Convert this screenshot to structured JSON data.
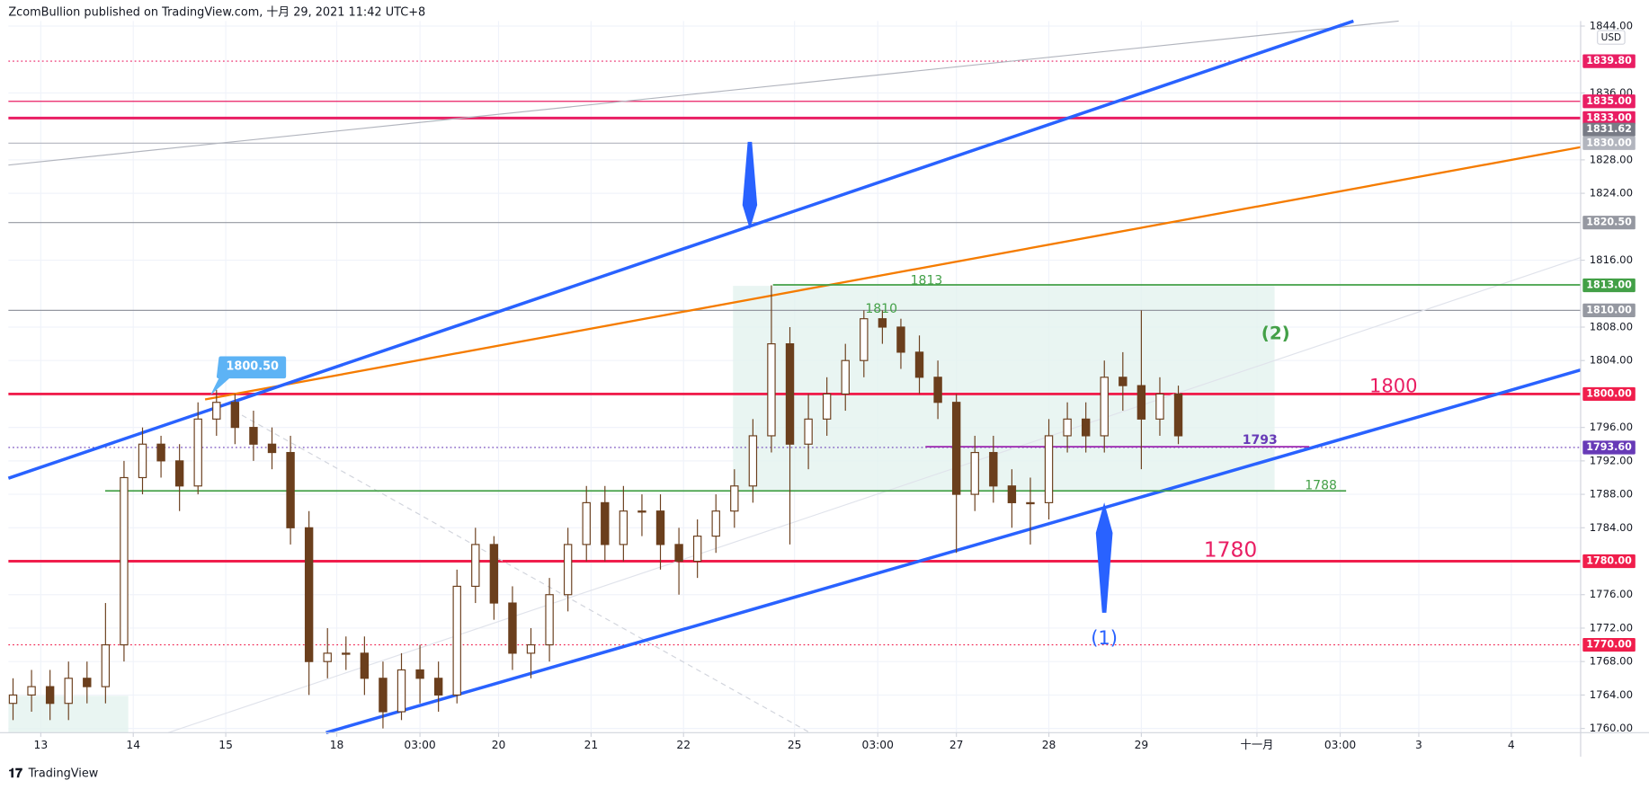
{
  "header": "ZcomBullion published on TradingView.com, 十月 29, 2021 11:42 UTC+8",
  "footer": "TradingView",
  "chart_data": {
    "type": "candlestick",
    "currency": "USD",
    "color": "#6b3f1d",
    "x": [
      1,
      5,
      9,
      13,
      17,
      21,
      25,
      29,
      33,
      37,
      41,
      45,
      49,
      53,
      57,
      61,
      65,
      69,
      73,
      77,
      81,
      85,
      89,
      93,
      97,
      101,
      105,
      109,
      113,
      117,
      121,
      125,
      129,
      133,
      137,
      141,
      145,
      149,
      153,
      157,
      161,
      165,
      169,
      173,
      177,
      181,
      185,
      189,
      193,
      197,
      201,
      205,
      209,
      213,
      217,
      221,
      225,
      229,
      233,
      237,
      241,
      245,
      249,
      253
    ],
    "open": [
      1763,
      1764,
      1765,
      1763,
      1766,
      1765,
      1770,
      1790,
      1794,
      1792,
      1789,
      1797,
      1799,
      1796,
      1794,
      1793,
      1784,
      1768,
      1769,
      1769,
      1766,
      1762,
      1767,
      1766,
      1764,
      1777,
      1782,
      1775,
      1769,
      1770,
      1776,
      1782,
      1787,
      1782,
      1786,
      1786,
      1782,
      1780,
      1783,
      1786,
      1789,
      1795,
      1806,
      1794,
      1797,
      1800,
      1804,
      1809,
      1808,
      1805,
      1802,
      1799,
      1788,
      1793,
      1789,
      1787,
      1787,
      1795,
      1797,
      1795,
      1802,
      1801,
      1797,
      1800
    ],
    "high": [
      1766,
      1767,
      1767,
      1768,
      1768,
      1775,
      1792,
      1796,
      1795,
      1794,
      1799,
      1800.5,
      1800,
      1798,
      1796,
      1795,
      1786,
      1772,
      1771,
      1771,
      1768,
      1769,
      1770,
      1768,
      1779,
      1784,
      1783,
      1777,
      1772,
      1778,
      1784,
      1789,
      1789,
      1789,
      1788,
      1788,
      1784,
      1785,
      1788,
      1791,
      1797,
      1813,
      1808,
      1800,
      1802,
      1806,
      1810,
      1810,
      1809,
      1807,
      1804,
      1800,
      1795,
      1795,
      1791,
      1790,
      1797,
      1799,
      1799,
      1804,
      1805,
      1810,
      1802,
      1801
    ],
    "low": [
      1761,
      1762,
      1761,
      1761,
      1763,
      1763,
      1768,
      1788,
      1790,
      1786,
      1788,
      1795,
      1794,
      1792,
      1791,
      1782,
      1764,
      1766,
      1767,
      1764,
      1760,
      1761,
      1763,
      1762,
      1763,
      1775,
      1773,
      1767,
      1766,
      1768,
      1774,
      1780,
      1780,
      1780,
      1783,
      1779,
      1776,
      1778,
      1781,
      1784,
      1787,
      1793,
      1782,
      1791,
      1795,
      1798,
      1802,
      1806,
      1803,
      1800,
      1797,
      1781,
      1786,
      1787,
      1784,
      1782,
      1785,
      1793,
      1793,
      1793,
      1798,
      1791,
      1795,
      1794
    ],
    "close": [
      1764,
      1765,
      1763,
      1766,
      1765,
      1770,
      1790,
      1794,
      1792,
      1789,
      1797,
      1799,
      1796,
      1794,
      1793,
      1784,
      1768,
      1769,
      1769,
      1766,
      1762,
      1767,
      1766,
      1764,
      1777,
      1782,
      1775,
      1769,
      1770,
      1776,
      1782,
      1787,
      1782,
      1786,
      1786,
      1782,
      1780,
      1783,
      1786,
      1789,
      1795,
      1806,
      1794,
      1797,
      1800,
      1804,
      1809,
      1808,
      1805,
      1802,
      1799,
      1788,
      1793,
      1789,
      1787,
      1787,
      1795,
      1797,
      1795,
      1802,
      1801,
      1797,
      1800,
      1795
    ],
    "xlim": [
      0,
      340
    ],
    "xticks": [
      {
        "value": 7,
        "label": "13"
      },
      {
        "value": 27,
        "label": "14"
      },
      {
        "value": 47,
        "label": "15"
      },
      {
        "value": 71,
        "label": "18"
      },
      {
        "value": 89,
        "label": "03:00"
      },
      {
        "value": 106,
        "label": "20"
      },
      {
        "value": 126,
        "label": "21"
      },
      {
        "value": 146,
        "label": "22"
      },
      {
        "value": 170,
        "label": "25"
      },
      {
        "value": 188,
        "label": "03:00"
      },
      {
        "value": 205,
        "label": "27"
      },
      {
        "value": 225,
        "label": "28"
      },
      {
        "value": 245,
        "label": "29"
      },
      {
        "value": 270,
        "label": "十一月"
      },
      {
        "value": 288,
        "label": "03:00"
      },
      {
        "value": 305,
        "label": "3"
      },
      {
        "value": 325,
        "label": "4"
      }
    ],
    "ylim": [
      1759.5,
      1844.6
    ],
    "yticks": [
      {
        "value": 1760,
        "label": "1760.00"
      },
      {
        "value": 1764,
        "label": "1764.00"
      },
      {
        "value": 1768,
        "label": "1768.00"
      },
      {
        "value": 1772,
        "label": "1772.00"
      },
      {
        "value": 1776,
        "label": "1776.00"
      },
      {
        "value": 1784,
        "label": "1784.00"
      },
      {
        "value": 1788,
        "label": "1788.00"
      },
      {
        "value": 1792,
        "label": "1792.00"
      },
      {
        "value": 1796,
        "label": "1796.00"
      },
      {
        "value": 1804,
        "label": "1804.00"
      },
      {
        "value": 1808,
        "label": "1808.00"
      },
      {
        "value": 1816,
        "label": "1816.00"
      },
      {
        "value": 1824,
        "label": "1824.00"
      },
      {
        "value": 1828,
        "label": "1828.00"
      },
      {
        "value": 1836,
        "label": "1836.00"
      },
      {
        "value": 1844,
        "label": "1844.00"
      }
    ],
    "grid": true,
    "levels": [
      {
        "value": 1839.8,
        "label": "1839.80",
        "color": "#e91e63",
        "line": "dotted"
      },
      {
        "value": 1835,
        "label": "1835.00",
        "color": "#e91e63",
        "line": "solid"
      },
      {
        "value": 1833,
        "label": "1833.00",
        "color": "#e91e63",
        "line": "thick"
      },
      {
        "value": 1831.62,
        "label": "1831.62",
        "color": "#787b86",
        "line": "none"
      },
      {
        "value": 1830,
        "label": "1830.00",
        "color": "#b2b5be",
        "line": "solid"
      },
      {
        "value": 1820.5,
        "label": "1820.50",
        "color": "#9598a1",
        "line": "solid"
      },
      {
        "value": 1813,
        "label": "1813.00",
        "color": "#43a047",
        "line": "none"
      },
      {
        "value": 1810,
        "label": "1810.00",
        "color": "#9598a1",
        "line": "solid"
      },
      {
        "value": 1800,
        "label": "1800.00",
        "color": "#f01e4c",
        "line": "thick"
      },
      {
        "value": 1793.6,
        "label": "1793.60",
        "color": "#673ab7",
        "line": "dotted"
      },
      {
        "value": 1780,
        "label": "1780.00",
        "color": "#f01e4c",
        "line": "thick"
      },
      {
        "value": 1770,
        "label": "1770.00",
        "color": "#f01e4c",
        "line": "dotted"
      }
    ],
    "annotations": [
      "1800.50",
      "1813",
      "1810",
      "(2)",
      "1800",
      "1793",
      "1788",
      "1780",
      "(1)"
    ]
  }
}
